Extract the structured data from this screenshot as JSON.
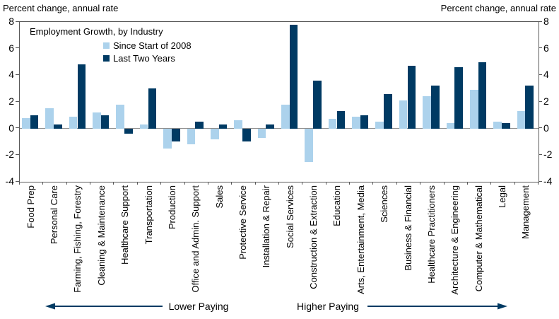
{
  "axis_titles": {
    "left": "Percent change, annual rate",
    "right": "Percent change, annual rate"
  },
  "chart_data": {
    "type": "bar",
    "title": "Employment Growth, by Industry",
    "ylabel": "Percent change, annual rate",
    "ylim": [
      -4,
      8
    ],
    "yticks": [
      8,
      6,
      4,
      2,
      0,
      -2,
      -4
    ],
    "grid": "off",
    "legend_position": "top-left-inside",
    "zero_line_color": "#8c8c8c",
    "arrow_color": "#003A63",
    "categories": [
      "Food Prep",
      "Personal Care",
      "Farming, Fishing, Forestry",
      "Cleaning & Maintenance",
      "Healthcare Support",
      "Transportation",
      "Production",
      "Office and Admin. Support",
      "Sales",
      "Protective Service",
      "Installation & Repair",
      "Social Services",
      "Construction & Extraction",
      "Education",
      "Arts, Entertainment, Media",
      "Sciences",
      "Business & Financial",
      "Healthcare Practitioners",
      "Architecture & Engineering",
      "Computer & Mathematical",
      "Legal",
      "Management"
    ],
    "series": [
      {
        "name": "Since Start of 2008",
        "color": "#ACD2EC",
        "values": [
          0.8,
          1.5,
          0.9,
          1.2,
          1.8,
          0.3,
          -1.5,
          -1.2,
          -0.8,
          0.6,
          -0.7,
          1.8,
          -2.5,
          0.7,
          0.9,
          0.5,
          2.1,
          2.4,
          0.4,
          2.9,
          0.5,
          1.3
        ]
      },
      {
        "name": "Last Two Years",
        "color": "#003A63",
        "values": [
          1.0,
          0.3,
          4.8,
          1.0,
          -0.4,
          3.0,
          -1.0,
          0.5,
          0.3,
          -1.0,
          0.3,
          7.8,
          3.6,
          1.3,
          1.0,
          2.6,
          4.7,
          3.2,
          4.6,
          5.0,
          0.4,
          3.2
        ]
      }
    ],
    "group_labels": {
      "lower": "Lower Paying",
      "higher": "Higher Paying"
    }
  }
}
